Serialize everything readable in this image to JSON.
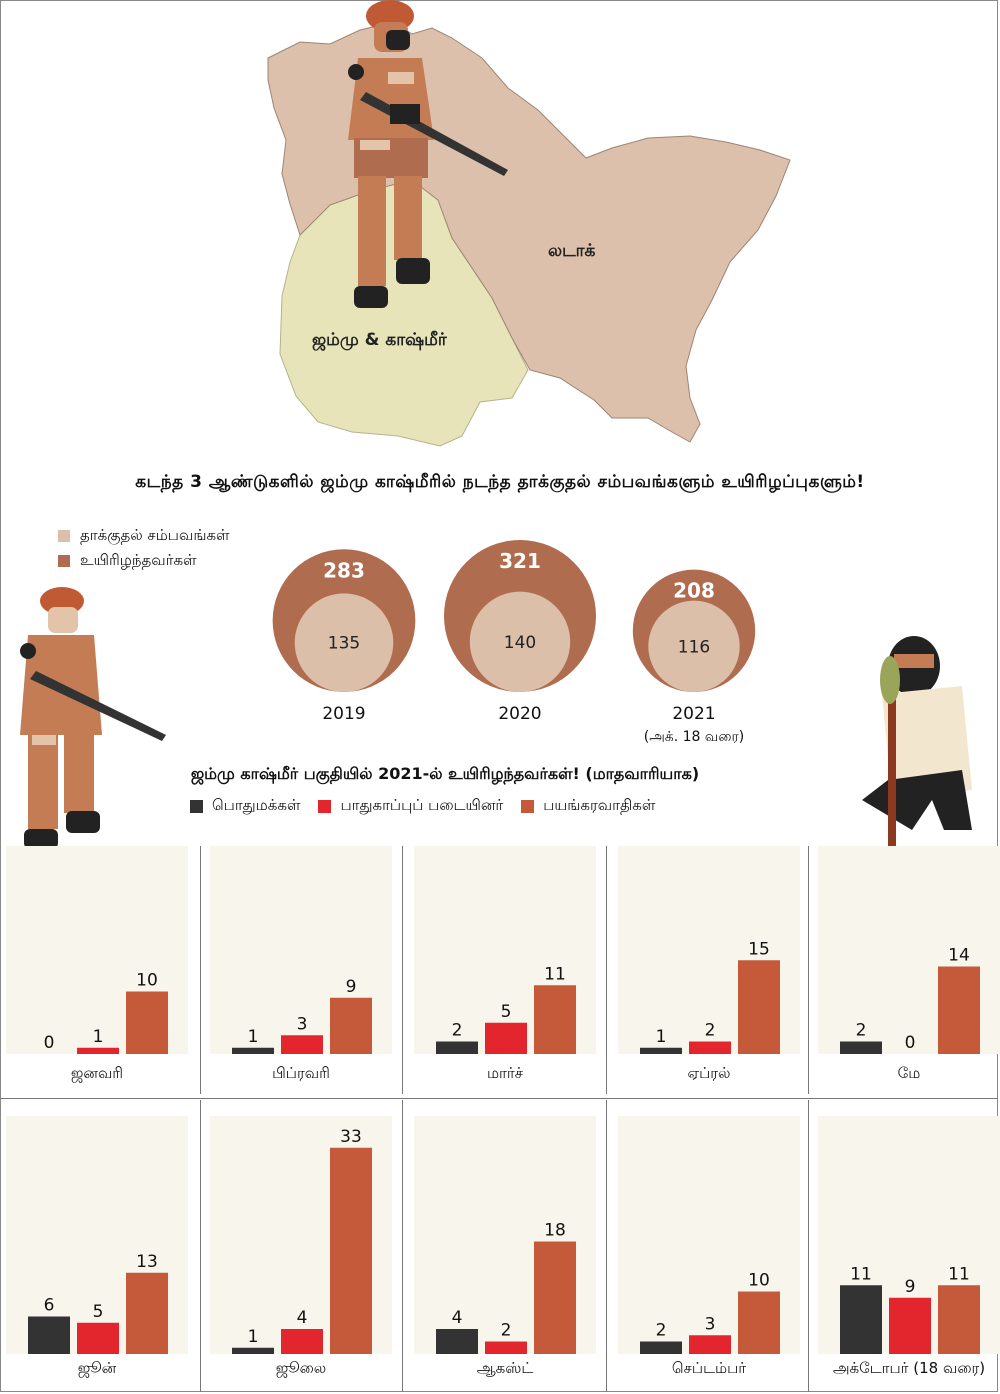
{
  "map": {
    "region_ladakh": "லடாக்",
    "region_jk": "ஜம்மு & காஷ்மீர்"
  },
  "section1": {
    "title": "கடந்த 3 ஆண்டுகளில் ஜம்மு காஷ்மீரில் நடந்த தாக்குதல் சம்பவங்களும் உயிரிழப்புகளும்!",
    "legend": [
      "தாக்குதல் சம்பவங்கள்",
      "உயிரிழந்தவர்கள்"
    ]
  },
  "section2": {
    "title": "ஜம்மு காஷ்மீர் பகுதியில் 2021-ல் உயிரிழந்தவர்கள்! (மாதவாரியாக)",
    "legend": [
      "பொதுமக்கள்",
      "பாதுகாப்புப் படையினர்",
      "பயங்கரவாதிகள்"
    ]
  },
  "colors": {
    "map_ladakh": "#dcc0ab",
    "map_jk": "#e6e4b8",
    "incidents": "#dbbfa9",
    "deaths": "#b06c4f",
    "civilians": "#333333",
    "security": "#e3262e",
    "terrorists": "#c55a3a",
    "panel_bg": "#f8f6ec",
    "soldier": "#c47c55",
    "helmet": "#c05a35"
  },
  "chart_data": [
    {
      "type": "bubble",
      "categories": [
        "2019",
        "2020",
        "2021"
      ],
      "category_notes": [
        "",
        "",
        "(அக். 18 வரை)"
      ],
      "series": [
        {
          "name": "தாக்குதல் சம்பவங்கள்",
          "values": [
            135,
            140,
            116
          ]
        },
        {
          "name": "உயிரிழந்தவர்கள்",
          "values": [
            283,
            321,
            208
          ]
        }
      ]
    },
    {
      "type": "bar",
      "categories": [
        "ஜனவரி",
        "பிப்ரவரி",
        "மார்ச்",
        "ஏப்ரல்",
        "மே",
        "ஜூன்",
        "ஜூலை",
        "ஆகஸ்ட்",
        "செப்டம்பர்",
        "அக்டோபர்"
      ],
      "category_notes": [
        "",
        "",
        "",
        "",
        "",
        "",
        "",
        "",
        "",
        "(18 வரை)"
      ],
      "series": [
        {
          "name": "பொதுமக்கள்",
          "values": [
            0,
            1,
            2,
            1,
            2,
            6,
            1,
            4,
            2,
            11
          ]
        },
        {
          "name": "பாதுகாப்புப் படையினர்",
          "values": [
            1,
            3,
            5,
            2,
            0,
            5,
            4,
            2,
            3,
            9
          ]
        },
        {
          "name": "பயங்கரவாதிகள்",
          "values": [
            10,
            9,
            11,
            15,
            14,
            13,
            33,
            18,
            10,
            11
          ]
        }
      ],
      "ylim": [
        0,
        33
      ]
    }
  ]
}
